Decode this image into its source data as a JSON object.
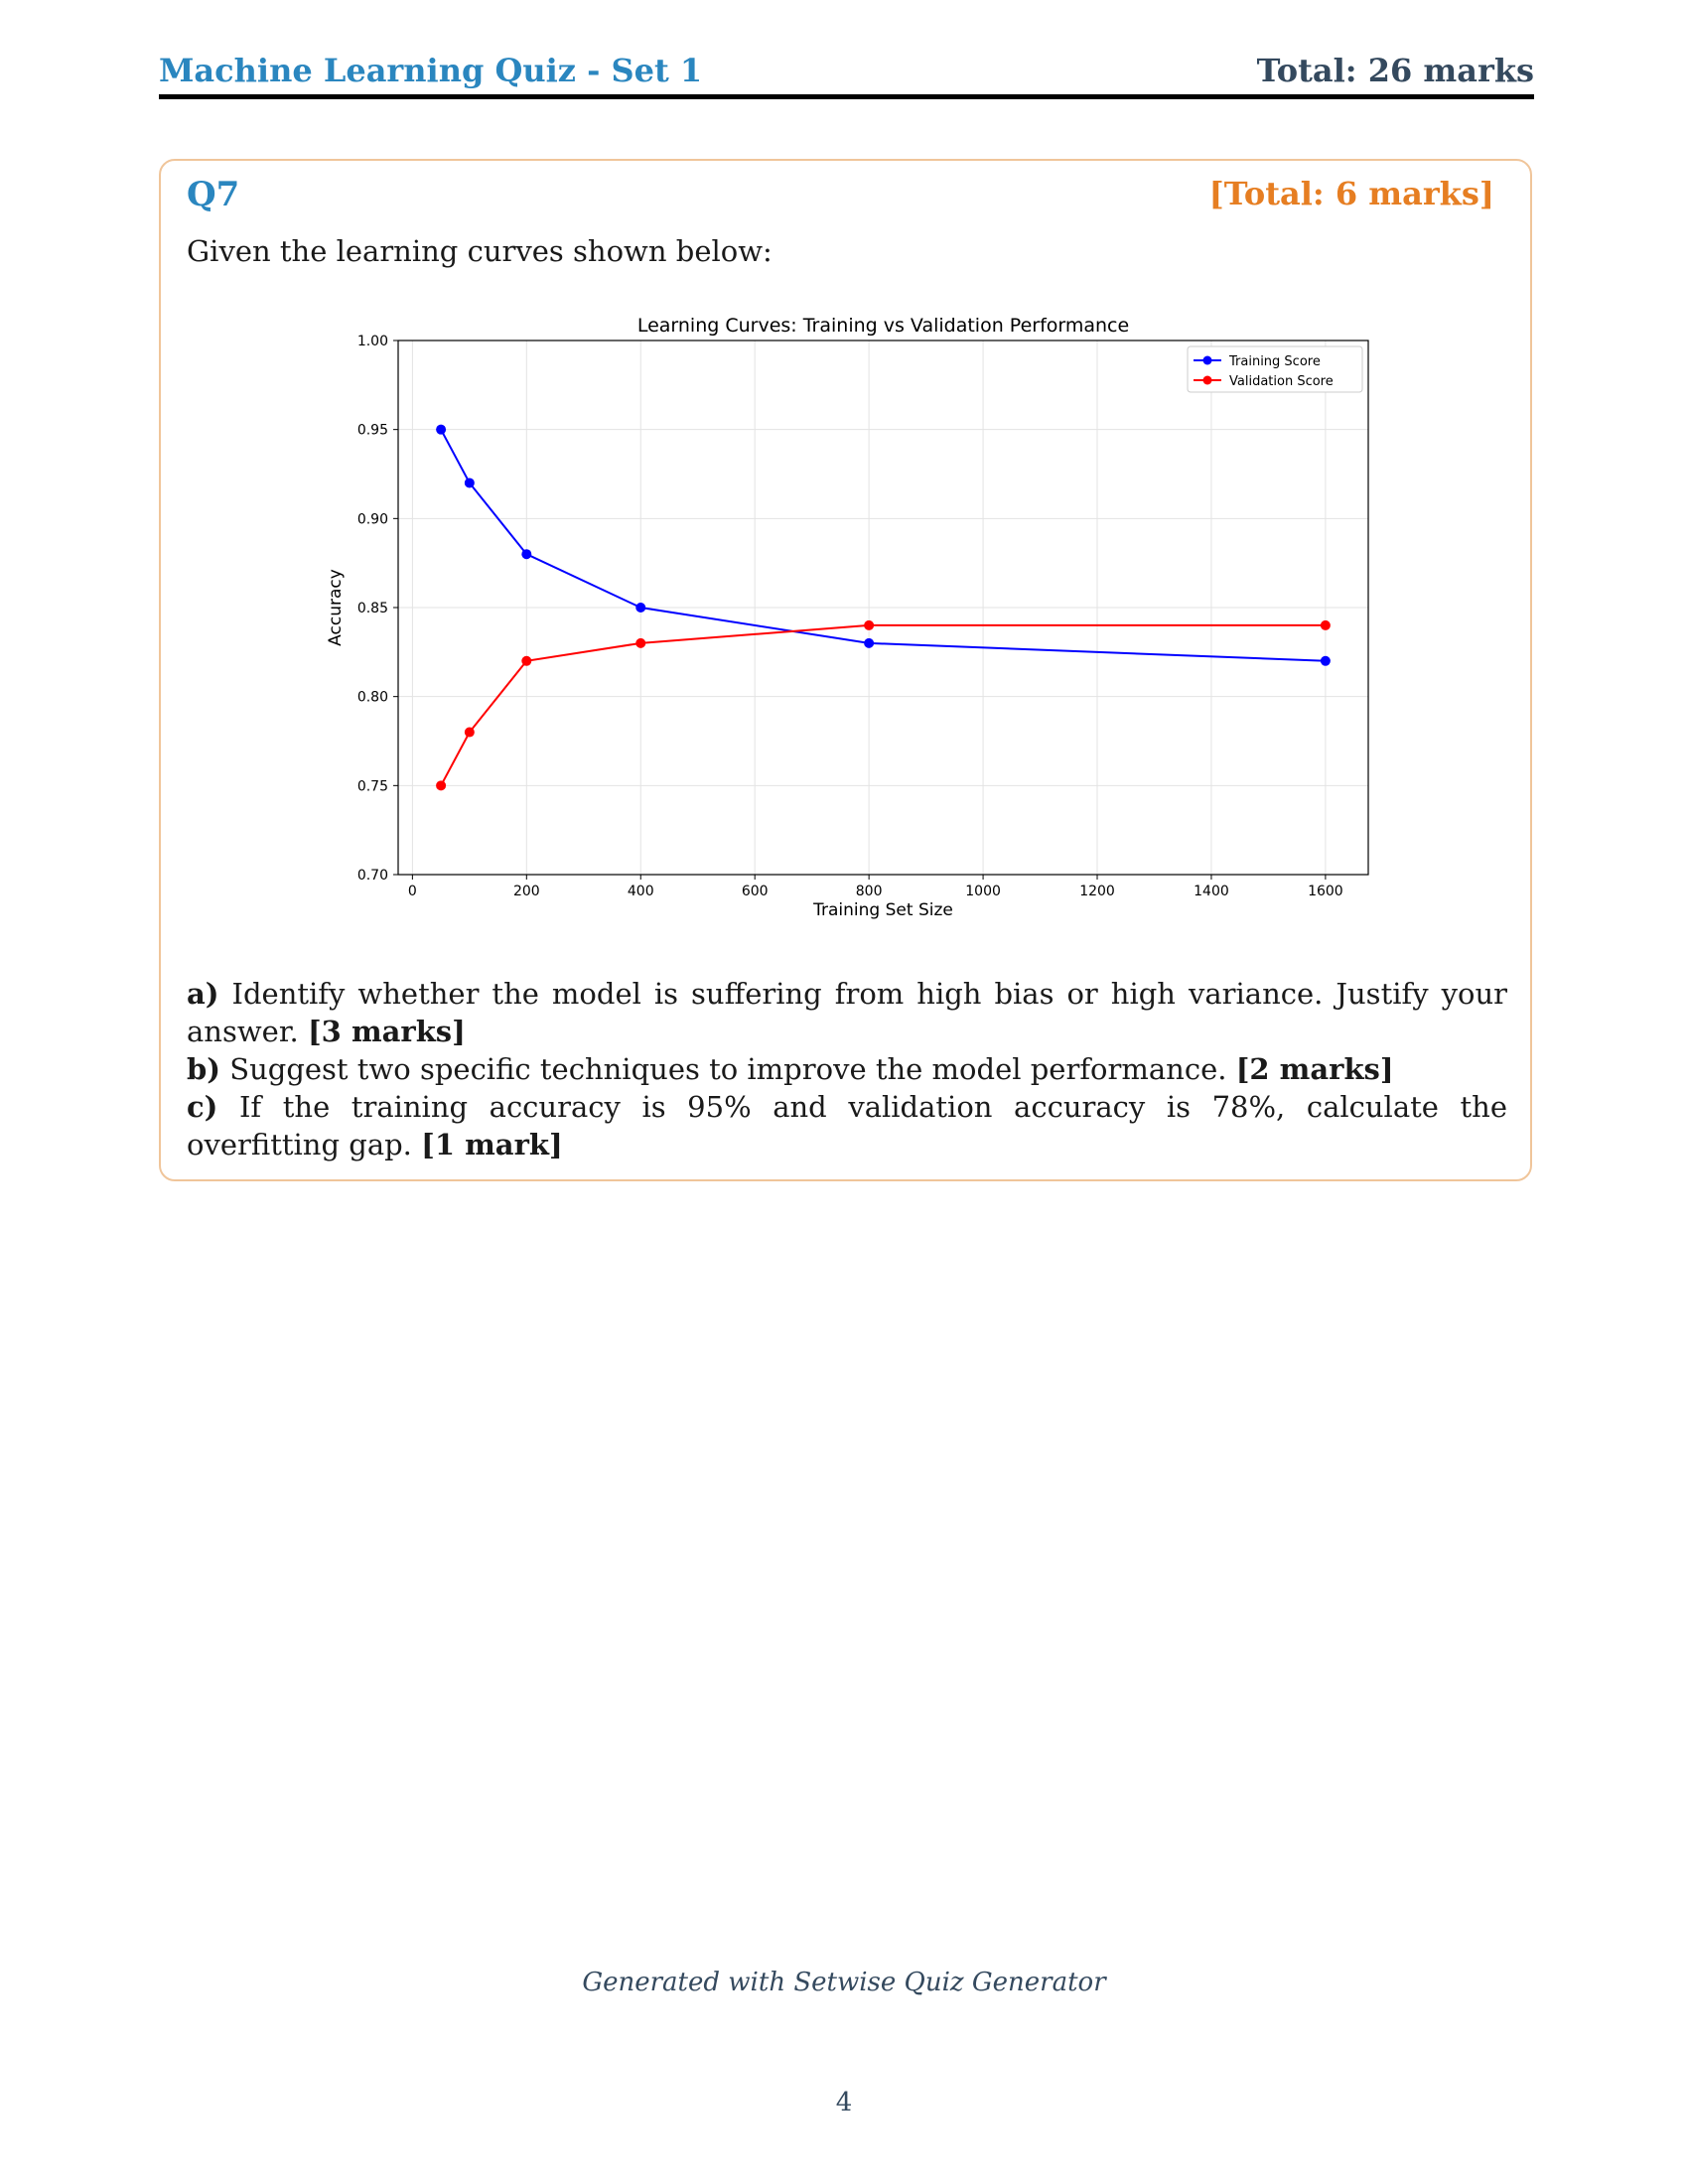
{
  "header": {
    "title": "Machine Learning Quiz - Set 1",
    "total": "Total: 26 marks"
  },
  "question": {
    "number": "Q7",
    "total": "[Total: 6 marks]",
    "intro": "Given the learning curves shown below:",
    "parts": [
      {
        "label": "a)",
        "text": "Identify whether the model is suffering from high bias or high variance. Justify your answer.",
        "marks": "[3 marks]"
      },
      {
        "label": "b)",
        "text": "Suggest two specific techniques to improve the model performance.",
        "marks": "[2 marks]"
      },
      {
        "label": "c)",
        "text": "If the training accuracy is 95% and validation accuracy is 78%, calculate the overfitting gap.",
        "marks": "[1 mark]"
      }
    ]
  },
  "chart_data": {
    "type": "line",
    "title": "Learning Curves: Training vs Validation Performance",
    "xlabel": "Training Set Size",
    "ylabel": "Accuracy",
    "x": [
      50,
      100,
      200,
      400,
      800,
      1600
    ],
    "series": [
      {
        "name": "Training Score",
        "color": "#0000ff",
        "values": [
          0.95,
          0.92,
          0.88,
          0.85,
          0.83,
          0.82
        ]
      },
      {
        "name": "Validation Score",
        "color": "#ff0000",
        "values": [
          0.75,
          0.78,
          0.82,
          0.83,
          0.84,
          0.84
        ]
      }
    ],
    "xlim": [
      -25,
      1675
    ],
    "ylim": [
      0.7,
      1.0
    ],
    "xticks": [
      "0",
      "200",
      "400",
      "600",
      "800",
      "1000",
      "1200",
      "1400",
      "1600"
    ],
    "yticks": [
      "0.70",
      "0.75",
      "0.80",
      "0.85",
      "0.90",
      "0.95",
      "1.00"
    ],
    "grid": true,
    "legend": "top-right"
  },
  "footer": {
    "text": "Generated with Setwise Quiz Generator",
    "page": "4"
  }
}
